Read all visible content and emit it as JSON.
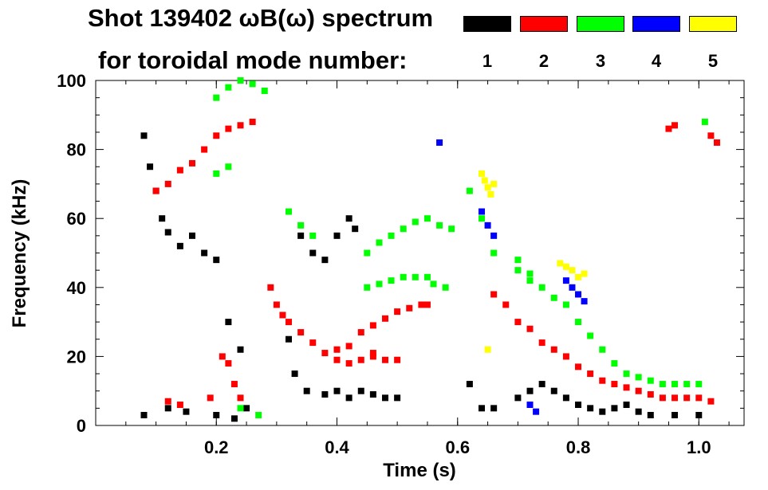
{
  "header": {
    "title": "Shot 139402 ωB(ω) spectrum",
    "subtitle": "for toroidal mode number:"
  },
  "legend": [
    {
      "label": "1",
      "color": "#000000"
    },
    {
      "label": "2",
      "color": "#ff0000"
    },
    {
      "label": "3",
      "color": "#00ff00"
    },
    {
      "label": "4",
      "color": "#0000ff"
    },
    {
      "label": "5",
      "color": "#ffff00"
    }
  ],
  "chart_data": {
    "type": "scatter",
    "title": "Shot 139402 ωB(ω) spectrum",
    "xlabel": "Time (s)",
    "ylabel": "Frequency (kHz)",
    "xlim": [
      0.0,
      1.075
    ],
    "ylim": [
      0,
      100
    ],
    "xticks": [
      {
        "value": 0.2,
        "label": "0.2"
      },
      {
        "value": 0.4,
        "label": "0.4"
      },
      {
        "value": 0.6,
        "label": "0.6"
      },
      {
        "value": 0.8,
        "label": "0.8"
      },
      {
        "value": 1.0,
        "label": "1.0"
      }
    ],
    "yticks": [
      {
        "value": 0,
        "label": "0"
      },
      {
        "value": 20,
        "label": "20"
      },
      {
        "value": 40,
        "label": "40"
      },
      {
        "value": 60,
        "label": "60"
      },
      {
        "value": 80,
        "label": "80"
      },
      {
        "value": 100,
        "label": "100"
      }
    ],
    "series": [
      {
        "name": "n=1",
        "color": "#000000",
        "points": [
          [
            0.08,
            84
          ],
          [
            0.09,
            75
          ],
          [
            0.1,
            68
          ],
          [
            0.11,
            60
          ],
          [
            0.12,
            56
          ],
          [
            0.14,
            52
          ],
          [
            0.16,
            55
          ],
          [
            0.18,
            50
          ],
          [
            0.2,
            48
          ],
          [
            0.22,
            30
          ],
          [
            0.24,
            22
          ],
          [
            0.25,
            5
          ],
          [
            0.08,
            3
          ],
          [
            0.12,
            5
          ],
          [
            0.15,
            4
          ],
          [
            0.2,
            3
          ],
          [
            0.23,
            2
          ],
          [
            0.32,
            25
          ],
          [
            0.33,
            15
          ],
          [
            0.35,
            10
          ],
          [
            0.38,
            9
          ],
          [
            0.4,
            10
          ],
          [
            0.42,
            8
          ],
          [
            0.44,
            10
          ],
          [
            0.46,
            9
          ],
          [
            0.48,
            8
          ],
          [
            0.5,
            8
          ],
          [
            0.34,
            55
          ],
          [
            0.36,
            50
          ],
          [
            0.38,
            48
          ],
          [
            0.4,
            55
          ],
          [
            0.42,
            60
          ],
          [
            0.43,
            57
          ],
          [
            0.62,
            12
          ],
          [
            0.64,
            5
          ],
          [
            0.66,
            5
          ],
          [
            0.7,
            8
          ],
          [
            0.72,
            10
          ],
          [
            0.74,
            12
          ],
          [
            0.76,
            10
          ],
          [
            0.78,
            8
          ],
          [
            0.8,
            6
          ],
          [
            0.82,
            5
          ],
          [
            0.84,
            4
          ],
          [
            0.86,
            5
          ],
          [
            0.88,
            6
          ],
          [
            0.9,
            4
          ],
          [
            0.92,
            3
          ],
          [
            0.96,
            3
          ],
          [
            1.0,
            3
          ]
        ]
      },
      {
        "name": "n=2",
        "color": "#ff0000",
        "points": [
          [
            0.1,
            68
          ],
          [
            0.12,
            70
          ],
          [
            0.14,
            74
          ],
          [
            0.16,
            76
          ],
          [
            0.18,
            80
          ],
          [
            0.2,
            84
          ],
          [
            0.22,
            86
          ],
          [
            0.24,
            87
          ],
          [
            0.26,
            88
          ],
          [
            0.21,
            20
          ],
          [
            0.22,
            18
          ],
          [
            0.23,
            12
          ],
          [
            0.24,
            8
          ],
          [
            0.12,
            7
          ],
          [
            0.14,
            6
          ],
          [
            0.19,
            8
          ],
          [
            0.29,
            40
          ],
          [
            0.3,
            35
          ],
          [
            0.31,
            32
          ],
          [
            0.32,
            30
          ],
          [
            0.34,
            27
          ],
          [
            0.36,
            24
          ],
          [
            0.38,
            21
          ],
          [
            0.4,
            19
          ],
          [
            0.42,
            18
          ],
          [
            0.44,
            19
          ],
          [
            0.46,
            21
          ],
          [
            0.4,
            22
          ],
          [
            0.42,
            23
          ],
          [
            0.44,
            27
          ],
          [
            0.46,
            29
          ],
          [
            0.48,
            31
          ],
          [
            0.5,
            33
          ],
          [
            0.52,
            34
          ],
          [
            0.54,
            35
          ],
          [
            0.55,
            35
          ],
          [
            0.46,
            20
          ],
          [
            0.48,
            19
          ],
          [
            0.5,
            19
          ],
          [
            0.66,
            38
          ],
          [
            0.68,
            35
          ],
          [
            0.7,
            30
          ],
          [
            0.72,
            28
          ],
          [
            0.74,
            24
          ],
          [
            0.76,
            22
          ],
          [
            0.78,
            20
          ],
          [
            0.8,
            17
          ],
          [
            0.82,
            15
          ],
          [
            0.84,
            13
          ],
          [
            0.86,
            12
          ],
          [
            0.88,
            11
          ],
          [
            0.9,
            10
          ],
          [
            0.92,
            9
          ],
          [
            0.94,
            8
          ],
          [
            0.96,
            8
          ],
          [
            0.98,
            8
          ],
          [
            1.0,
            8
          ],
          [
            1.02,
            7
          ],
          [
            0.95,
            86
          ],
          [
            0.96,
            87
          ],
          [
            1.02,
            84
          ],
          [
            1.03,
            82
          ]
        ]
      },
      {
        "name": "n=3",
        "color": "#00ff00",
        "points": [
          [
            0.2,
            95
          ],
          [
            0.22,
            98
          ],
          [
            0.24,
            100
          ],
          [
            0.26,
            99
          ],
          [
            0.28,
            97
          ],
          [
            0.2,
            73
          ],
          [
            0.22,
            75
          ],
          [
            0.32,
            62
          ],
          [
            0.34,
            58
          ],
          [
            0.36,
            55
          ],
          [
            0.45,
            50
          ],
          [
            0.47,
            53
          ],
          [
            0.49,
            55
          ],
          [
            0.51,
            57
          ],
          [
            0.53,
            59
          ],
          [
            0.55,
            60
          ],
          [
            0.57,
            58
          ],
          [
            0.59,
            57
          ],
          [
            0.45,
            40
          ],
          [
            0.47,
            41
          ],
          [
            0.49,
            42
          ],
          [
            0.51,
            43
          ],
          [
            0.53,
            43
          ],
          [
            0.55,
            43
          ],
          [
            0.56,
            41
          ],
          [
            0.58,
            40
          ],
          [
            0.62,
            68
          ],
          [
            0.64,
            60
          ],
          [
            0.66,
            50
          ],
          [
            0.7,
            45
          ],
          [
            0.72,
            42
          ],
          [
            0.74,
            40
          ],
          [
            0.76,
            37
          ],
          [
            0.78,
            35
          ],
          [
            0.8,
            30
          ],
          [
            0.82,
            26
          ],
          [
            0.84,
            22
          ],
          [
            0.86,
            18
          ],
          [
            0.88,
            15
          ],
          [
            0.9,
            14
          ],
          [
            0.92,
            13
          ],
          [
            0.94,
            12
          ],
          [
            0.96,
            12
          ],
          [
            0.98,
            12
          ],
          [
            1.0,
            12
          ],
          [
            0.7,
            48
          ],
          [
            0.72,
            44
          ],
          [
            0.24,
            5
          ],
          [
            0.27,
            3
          ],
          [
            1.01,
            88
          ]
        ]
      },
      {
        "name": "n=4",
        "color": "#0000ff",
        "points": [
          [
            0.64,
            62
          ],
          [
            0.65,
            58
          ],
          [
            0.66,
            55
          ],
          [
            0.78,
            42
          ],
          [
            0.79,
            40
          ],
          [
            0.8,
            38
          ],
          [
            0.81,
            36
          ],
          [
            0.57,
            82
          ],
          [
            0.72,
            6
          ],
          [
            0.73,
            4
          ]
        ]
      },
      {
        "name": "n=5",
        "color": "#ffff00",
        "points": [
          [
            0.64,
            73
          ],
          [
            0.645,
            71
          ],
          [
            0.65,
            69
          ],
          [
            0.655,
            67
          ],
          [
            0.66,
            70
          ],
          [
            0.77,
            47
          ],
          [
            0.78,
            46
          ],
          [
            0.79,
            45
          ],
          [
            0.8,
            43
          ],
          [
            0.81,
            44
          ],
          [
            0.65,
            22
          ]
        ]
      }
    ]
  }
}
